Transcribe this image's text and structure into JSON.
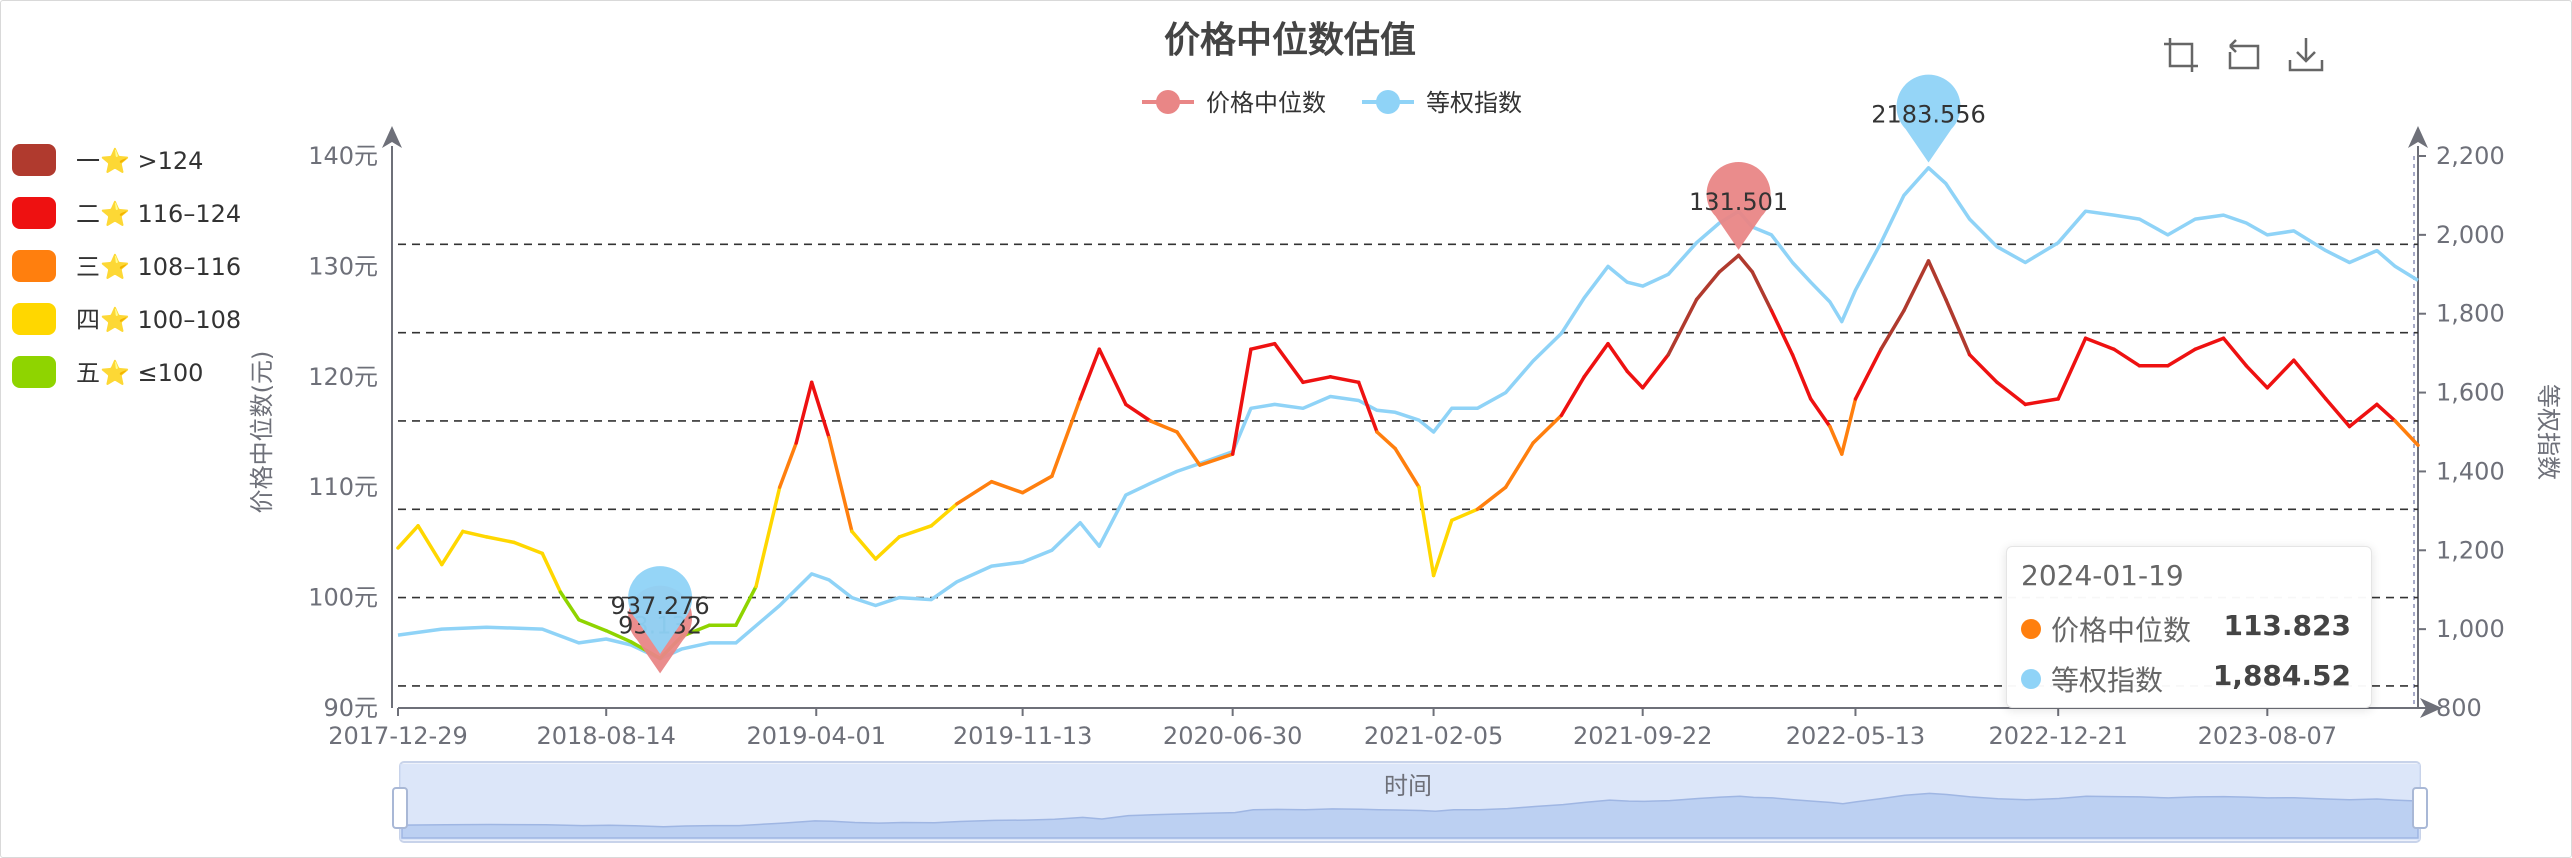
{
  "title": "价格中位数估值",
  "legend": [
    {
      "name": "价格中位数",
      "color": "#e98686"
    },
    {
      "name": "等权指数",
      "color": "#8fd3f7"
    }
  ],
  "grade_legend": [
    {
      "label": "一",
      "star": "⭐",
      "range": ">124",
      "color": "#b03a2e"
    },
    {
      "label": "二",
      "star": "⭐",
      "range": "116–124",
      "color": "#ee1111"
    },
    {
      "label": "三",
      "star": "⭐",
      "range": "108–116",
      "color": "#ff7f0e"
    },
    {
      "label": "四",
      "star": "⭐",
      "range": "100–108",
      "color": "#ffd700"
    },
    {
      "label": "五",
      "star": "⭐",
      "range": "≤100",
      "color": "#8fd400"
    }
  ],
  "toolbox": [
    "zoom-icon",
    "zoom-reset-icon",
    "download-icon"
  ],
  "tooltip": {
    "date": "2024-01-19",
    "rows": [
      {
        "name": "价格中位数",
        "value": "113.823",
        "color": "#ff7f0e"
      },
      {
        "name": "等权指数",
        "value": "1,884.52",
        "color": "#8fd3f7"
      }
    ]
  },
  "datazoom_label": "时间",
  "chart_data": {
    "type": "line",
    "title": "价格中位数估值",
    "x_ticks": [
      "2017-12-29",
      "2018-08-14",
      "2019-04-01",
      "2019-11-13",
      "2020-06-30",
      "2021-02-05",
      "2021-09-22",
      "2022-05-13",
      "2022-12-21",
      "2023-08-07"
    ],
    "x_range": [
      "2017-12-29",
      "2024-01-19"
    ],
    "y_left": {
      "label": "价格中位数(元)",
      "min": 90,
      "max": 140,
      "ticks": [
        "90元",
        "100元",
        "110元",
        "120元",
        "130元",
        "140元"
      ]
    },
    "y_right": {
      "label": "等权指数",
      "min": 800,
      "max": 2200,
      "ticks": [
        "800",
        "1,000",
        "1,200",
        "1,400",
        "1,600",
        "1,800",
        "2,000",
        "2,200"
      ]
    },
    "reference_lines": [
      92,
      100,
      108,
      116,
      124,
      132
    ],
    "grade_thresholds": {
      "one": 124,
      "two": 116,
      "three": 108,
      "four": 100
    },
    "series": [
      {
        "name": "价格中位数",
        "axis": "left",
        "points": [
          [
            "2017-12-29",
            104.5
          ],
          [
            "2018-01-20",
            106.5
          ],
          [
            "2018-02-15",
            103.0
          ],
          [
            "2018-03-10",
            106.0
          ],
          [
            "2018-04-05",
            105.5
          ],
          [
            "2018-05-05",
            105.0
          ],
          [
            "2018-06-05",
            104.0
          ],
          [
            "2018-06-25",
            100.5
          ],
          [
            "2018-07-15",
            98.0
          ],
          [
            "2018-08-14",
            97.0
          ],
          [
            "2018-09-10",
            96.0
          ],
          [
            "2018-10-12",
            94.5
          ],
          [
            "2018-11-05",
            96.5
          ],
          [
            "2018-12-05",
            97.5
          ],
          [
            "2019-01-03",
            97.5
          ],
          [
            "2019-01-25",
            101.0
          ],
          [
            "2019-02-20",
            110.0
          ],
          [
            "2019-03-10",
            114.0
          ],
          [
            "2019-03-27",
            119.5
          ],
          [
            "2019-04-15",
            114.5
          ],
          [
            "2019-05-10",
            106.0
          ],
          [
            "2019-06-05",
            103.5
          ],
          [
            "2019-07-01",
            105.5
          ],
          [
            "2019-08-05",
            106.5
          ],
          [
            "2019-09-02",
            108.5
          ],
          [
            "2019-10-10",
            110.5
          ],
          [
            "2019-11-13",
            109.5
          ],
          [
            "2019-12-15",
            111.0
          ],
          [
            "2020-01-15",
            118.0
          ],
          [
            "2020-02-05",
            122.5
          ],
          [
            "2020-03-05",
            117.5
          ],
          [
            "2020-04-01",
            116.0
          ],
          [
            "2020-04-30",
            115.0
          ],
          [
            "2020-05-25",
            112.0
          ],
          [
            "2020-06-30",
            113.0
          ],
          [
            "2020-07-20",
            122.5
          ],
          [
            "2020-08-15",
            123.0
          ],
          [
            "2020-09-15",
            119.5
          ],
          [
            "2020-10-15",
            120.0
          ],
          [
            "2020-11-15",
            119.5
          ],
          [
            "2020-12-05",
            115.0
          ],
          [
            "2020-12-25",
            113.5
          ],
          [
            "2021-01-20",
            110.0
          ],
          [
            "2021-02-05",
            102.0
          ],
          [
            "2021-02-25",
            107.0
          ],
          [
            "2021-03-25",
            108.0
          ],
          [
            "2021-04-25",
            110.0
          ],
          [
            "2021-05-25",
            114.0
          ],
          [
            "2021-06-25",
            116.5
          ],
          [
            "2021-07-20",
            120.0
          ],
          [
            "2021-08-15",
            123.0
          ],
          [
            "2021-09-05",
            120.5
          ],
          [
            "2021-09-22",
            119.0
          ],
          [
            "2021-10-20",
            122.0
          ],
          [
            "2021-11-20",
            127.0
          ],
          [
            "2021-12-15",
            129.5
          ],
          [
            "2022-01-05",
            131.0
          ],
          [
            "2022-01-20",
            129.5
          ],
          [
            "2022-02-10",
            126.0
          ],
          [
            "2022-03-05",
            122.0
          ],
          [
            "2022-03-25",
            118.0
          ],
          [
            "2022-04-15",
            115.5
          ],
          [
            "2022-04-28",
            113.0
          ],
          [
            "2022-05-13",
            118.0
          ],
          [
            "2022-06-10",
            122.5
          ],
          [
            "2022-07-05",
            126.0
          ],
          [
            "2022-08-01",
            130.5
          ],
          [
            "2022-08-20",
            127.0
          ],
          [
            "2022-09-15",
            122.0
          ],
          [
            "2022-10-15",
            119.5
          ],
          [
            "2022-11-15",
            117.5
          ],
          [
            "2022-12-21",
            118.0
          ],
          [
            "2023-01-20",
            123.5
          ],
          [
            "2023-02-20",
            122.5
          ],
          [
            "2023-03-20",
            121.0
          ],
          [
            "2023-04-20",
            121.0
          ],
          [
            "2023-05-20",
            122.5
          ],
          [
            "2023-06-20",
            123.5
          ],
          [
            "2023-07-15",
            121.0
          ],
          [
            "2023-08-07",
            119.0
          ],
          [
            "2023-09-05",
            121.5
          ],
          [
            "2023-10-10",
            118.0
          ],
          [
            "2023-11-05",
            115.5
          ],
          [
            "2023-12-05",
            117.5
          ],
          [
            "2023-12-25",
            116.0
          ],
          [
            "2024-01-19",
            113.8
          ]
        ]
      },
      {
        "name": "等权指数",
        "axis": "right",
        "points": [
          [
            "2017-12-29",
            985
          ],
          [
            "2018-02-15",
            1000
          ],
          [
            "2018-04-05",
            1005
          ],
          [
            "2018-06-05",
            1000
          ],
          [
            "2018-07-15",
            965
          ],
          [
            "2018-08-14",
            975
          ],
          [
            "2018-09-10",
            960
          ],
          [
            "2018-10-12",
            925
          ],
          [
            "2018-11-05",
            950
          ],
          [
            "2018-12-05",
            965
          ],
          [
            "2019-01-03",
            965
          ],
          [
            "2019-02-20",
            1060
          ],
          [
            "2019-03-27",
            1140
          ],
          [
            "2019-04-15",
            1125
          ],
          [
            "2019-05-10",
            1080
          ],
          [
            "2019-06-05",
            1060
          ],
          [
            "2019-07-01",
            1080
          ],
          [
            "2019-08-05",
            1075
          ],
          [
            "2019-09-02",
            1120
          ],
          [
            "2019-10-10",
            1160
          ],
          [
            "2019-11-13",
            1170
          ],
          [
            "2019-12-15",
            1200
          ],
          [
            "2020-01-15",
            1270
          ],
          [
            "2020-02-05",
            1210
          ],
          [
            "2020-03-05",
            1340
          ],
          [
            "2020-04-01",
            1370
          ],
          [
            "2020-04-30",
            1400
          ],
          [
            "2020-05-25",
            1420
          ],
          [
            "2020-06-30",
            1450
          ],
          [
            "2020-07-20",
            1560
          ],
          [
            "2020-08-15",
            1570
          ],
          [
            "2020-09-15",
            1560
          ],
          [
            "2020-10-15",
            1590
          ],
          [
            "2020-11-15",
            1580
          ],
          [
            "2020-12-05",
            1555
          ],
          [
            "2020-12-25",
            1550
          ],
          [
            "2021-01-20",
            1530
          ],
          [
            "2021-02-05",
            1500
          ],
          [
            "2021-02-25",
            1560
          ],
          [
            "2021-03-25",
            1560
          ],
          [
            "2021-04-25",
            1600
          ],
          [
            "2021-05-25",
            1680
          ],
          [
            "2021-06-25",
            1750
          ],
          [
            "2021-07-20",
            1840
          ],
          [
            "2021-08-15",
            1920
          ],
          [
            "2021-09-05",
            1880
          ],
          [
            "2021-09-22",
            1870
          ],
          [
            "2021-10-20",
            1900
          ],
          [
            "2021-11-20",
            1980
          ],
          [
            "2021-12-15",
            2030
          ],
          [
            "2022-01-05",
            2060
          ],
          [
            "2022-01-20",
            2020
          ],
          [
            "2022-02-10",
            2000
          ],
          [
            "2022-03-05",
            1930
          ],
          [
            "2022-03-25",
            1880
          ],
          [
            "2022-04-15",
            1830
          ],
          [
            "2022-04-28",
            1780
          ],
          [
            "2022-05-13",
            1860
          ],
          [
            "2022-06-10",
            1980
          ],
          [
            "2022-07-05",
            2100
          ],
          [
            "2022-08-01",
            2170
          ],
          [
            "2022-08-20",
            2130
          ],
          [
            "2022-09-15",
            2040
          ],
          [
            "2022-10-15",
            1970
          ],
          [
            "2022-11-15",
            1930
          ],
          [
            "2022-12-21",
            1980
          ],
          [
            "2023-01-20",
            2060
          ],
          [
            "2023-02-20",
            2050
          ],
          [
            "2023-03-20",
            2040
          ],
          [
            "2023-04-20",
            2000
          ],
          [
            "2023-05-20",
            2040
          ],
          [
            "2023-06-20",
            2050
          ],
          [
            "2023-07-15",
            2030
          ],
          [
            "2023-08-07",
            2000
          ],
          [
            "2023-09-05",
            2010
          ],
          [
            "2023-10-10",
            1960
          ],
          [
            "2023-11-05",
            1930
          ],
          [
            "2023-12-05",
            1960
          ],
          [
            "2023-12-25",
            1920
          ],
          [
            "2024-01-19",
            1884.52
          ]
        ]
      }
    ],
    "mark_points": [
      {
        "series": "价格中位数",
        "type": "max",
        "label": "131.501",
        "date": "2022-01-05",
        "value": 131.501
      },
      {
        "series": "价格中位数",
        "type": "min",
        "label": "93.132",
        "date": "2018-10-12",
        "value": 93.132
      },
      {
        "series": "等权指数",
        "type": "max",
        "label": "2183.556",
        "date": "2022-08-01",
        "value": 2183.556
      },
      {
        "series": "等权指数",
        "type": "min",
        "label": "937.276",
        "date": "2018-10-12",
        "value": 937.276
      }
    ]
  }
}
